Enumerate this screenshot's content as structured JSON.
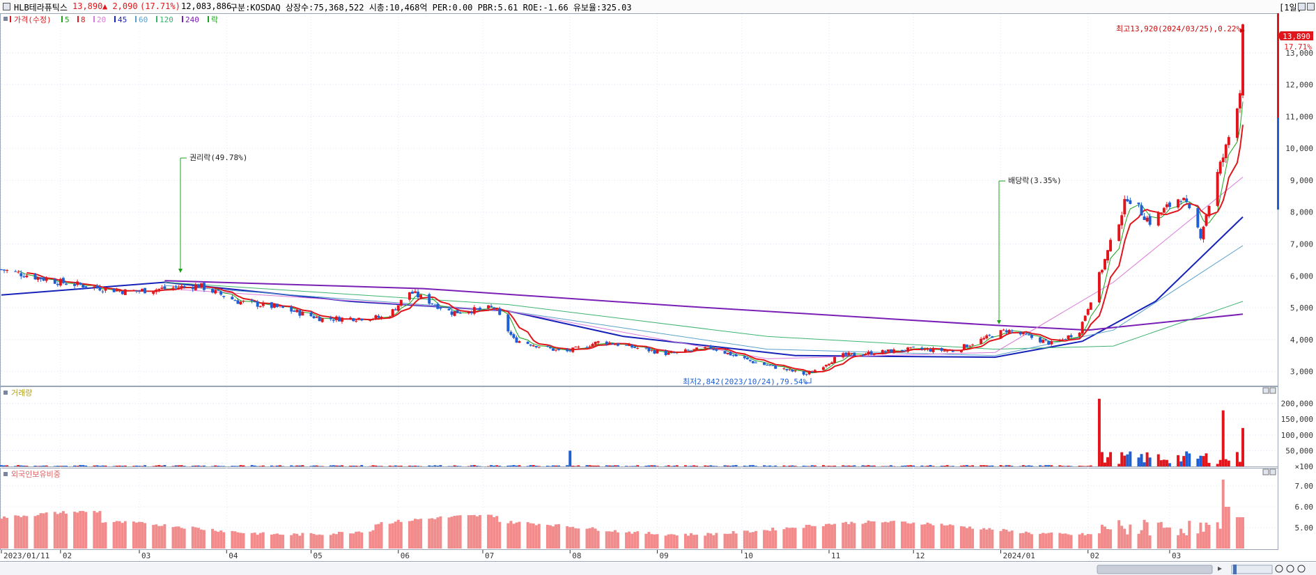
{
  "header": {
    "stock_name": "HLB테라퓨틱스",
    "price": "13,890",
    "change": "▲ 2,090",
    "change_pct": "(17.71%)",
    "volume": "12,083,886",
    "info": "구분:KOSDAQ 상장수:75,368,522 시총:10,468억 PER:0.00 PBR:5.61 ROE:-1.66 유보율:325.03",
    "period": "[1일]",
    "up_color": "#e0161c",
    "down_color": "#1f5fd4"
  },
  "legend": {
    "price_label": "가격(수정)",
    "ma": [
      {
        "label": "5",
        "color": "#1aa31a"
      },
      {
        "label": "8",
        "color": "#e0161c"
      },
      {
        "label": "20",
        "color": "#d97ad9"
      },
      {
        "label": "45",
        "color": "#1622b8"
      },
      {
        "label": "60",
        "color": "#5aa0c8"
      },
      {
        "label": "120",
        "color": "#3cb371"
      },
      {
        "label": "240",
        "color": "#7a1fb5"
      }
    ],
    "rak_label": "락"
  },
  "annotations": {
    "rights_label": "권리락(49.78%)",
    "dividend_label": "배당락(3.35%)",
    "high_label": "최고13,920(2024/03/25),0.22%",
    "low_label": "최저2,842(2023/10/24),79.54%",
    "last_price_tag": "13,890",
    "last_pct_tag": "17.71%"
  },
  "panels": {
    "volume_title": "거래량",
    "foreign_title": "외국인보유비중"
  },
  "chart_data": [
    {
      "type": "candlestick",
      "title": "가격(수정)",
      "y_ticks": [
        3000,
        4000,
        5000,
        6000,
        7000,
        8000,
        9000,
        10000,
        11000,
        12000,
        13000
      ],
      "y_tick_labels": [
        "3,000",
        "4,000",
        "5,000",
        "6,000",
        "7,000",
        "8,000",
        "9,000",
        "10,000",
        "11,000",
        "12,000",
        "13,000"
      ],
      "ylim": [
        2600,
        14000
      ],
      "x_labels": [
        "2023/01/11",
        "02",
        "03",
        "04",
        "05",
        "06",
        "07",
        "08",
        "09",
        "10",
        "11",
        "12",
        "2024/01",
        "02",
        "03"
      ],
      "keyframes": [
        {
          "date": "2023/01/11",
          "close": 6200
        },
        {
          "date": "2023/02/01",
          "close": 5800
        },
        {
          "date": "2023/02/25",
          "close": 5500
        },
        {
          "date": "2023/03/22",
          "close": 5700
        },
        {
          "date": "2023/04/05",
          "close": 5200
        },
        {
          "date": "2023/04/20",
          "close": 5000
        },
        {
          "date": "2023/05/05",
          "close": 4650
        },
        {
          "date": "2023/05/28",
          "close": 4700
        },
        {
          "date": "2023/06/05",
          "close": 5500
        },
        {
          "date": "2023/06/20",
          "close": 4850
        },
        {
          "date": "2023/07/05",
          "close": 5000
        },
        {
          "date": "2023/07/12",
          "close": 4000
        },
        {
          "date": "2023/07/30",
          "close": 3600
        },
        {
          "date": "2023/08/12",
          "close": 3950
        },
        {
          "date": "2023/09/05",
          "close": 3550
        },
        {
          "date": "2023/09/20",
          "close": 3750
        },
        {
          "date": "2023/10/05",
          "close": 3300
        },
        {
          "date": "2023/10/24",
          "close": 2900
        },
        {
          "date": "2023/11/05",
          "close": 3500
        },
        {
          "date": "2023/12/01",
          "close": 3700
        },
        {
          "date": "2023/12/15",
          "close": 3650
        },
        {
          "date": "2024/01/03",
          "close": 4300
        },
        {
          "date": "2024/01/20",
          "close": 3850
        },
        {
          "date": "2024/01/29",
          "close": 4300
        },
        {
          "date": "2024/02/05",
          "close": 6000
        },
        {
          "date": "2024/02/15",
          "close": 8500
        },
        {
          "date": "2024/02/23",
          "close": 7700
        },
        {
          "date": "2024/03/05",
          "close": 8500
        },
        {
          "date": "2024/03/12",
          "close": 7300
        },
        {
          "date": "2024/03/18",
          "close": 9200
        },
        {
          "date": "2024/03/21",
          "close": 10000
        },
        {
          "date": "2024/03/26",
          "close": 11800
        },
        {
          "date": "2024/03/27",
          "close": 13890
        }
      ],
      "moving_average_keyframes": [
        {
          "name": "45",
          "values": [
            [
              "2023/01/11",
              5400
            ],
            [
              "2023/03/10",
              5800
            ],
            [
              "2023/05/15",
              5200
            ],
            [
              "2023/07/10",
              4900
            ],
            [
              "2023/08/20",
              4100
            ],
            [
              "2023/10/20",
              3500
            ],
            [
              "2023/12/30",
              3450
            ],
            [
              "2024/01/30",
              3950
            ],
            [
              "2024/02/25",
              5200
            ],
            [
              "2024/03/27",
              7850
            ]
          ]
        },
        {
          "name": "240",
          "values": [
            [
              "2023/03/10",
              5850
            ],
            [
              "2023/06/10",
              5600
            ],
            [
              "2023/09/10",
              5050
            ],
            [
              "2023/12/30",
              4450
            ],
            [
              "2024/02/01",
              4300
            ],
            [
              "2024/03/27",
              4800
            ]
          ]
        },
        {
          "name": "120",
          "values": [
            [
              "2023/03/10",
              5800
            ],
            [
              "2023/07/10",
              5100
            ],
            [
              "2023/10/10",
              4100
            ],
            [
              "2023/12/30",
              3700
            ],
            [
              "2024/02/10",
              3800
            ],
            [
              "2024/03/27",
              5200
            ]
          ]
        },
        {
          "name": "60",
          "values": [
            [
              "2023/03/10",
              5700
            ],
            [
              "2023/07/10",
              4900
            ],
            [
              "2023/10/10",
              3700
            ],
            [
              "2023/12/30",
              3500
            ],
            [
              "2024/02/10",
              4300
            ],
            [
              "2024/03/27",
              6950
            ]
          ]
        },
        {
          "name": "20",
          "values": [
            [
              "2023/03/10",
              5600
            ],
            [
              "2023/07/10",
              4900
            ],
            [
              "2023/10/10",
              3400
            ],
            [
              "2023/12/30",
              3600
            ],
            [
              "2024/02/10",
              5800
            ],
            [
              "2024/03/27",
              9100
            ]
          ]
        }
      ],
      "high": {
        "value": 13920,
        "date": "2024/03/25"
      },
      "low": {
        "value": 2842,
        "date": "2023/10/24"
      }
    },
    {
      "type": "bar",
      "title": "거래량",
      "y_ticks": [
        100,
        50000,
        100000,
        150000,
        200000
      ],
      "y_tick_labels": [
        "×100",
        "50,000",
        "100,000",
        "150,000",
        "200,000"
      ],
      "ylim": [
        0,
        230000
      ],
      "spikes": [
        {
          "date": "2024/02/05",
          "value": 215000
        },
        {
          "date": "2024/03/20",
          "value": 178000
        },
        {
          "date": "2024/03/27",
          "value": 122000
        },
        {
          "date": "2023/08/01",
          "value": 50000
        }
      ]
    },
    {
      "type": "bar",
      "title": "외국인보유비중",
      "y_ticks": [
        5.0,
        6.0,
        7.0
      ],
      "y_tick_labels": [
        "5.00",
        "6.00",
        "7.00"
      ],
      "ylim": [
        4.0,
        7.6
      ],
      "peak": {
        "date": "2024/03/20",
        "value": 7.3
      }
    }
  ]
}
